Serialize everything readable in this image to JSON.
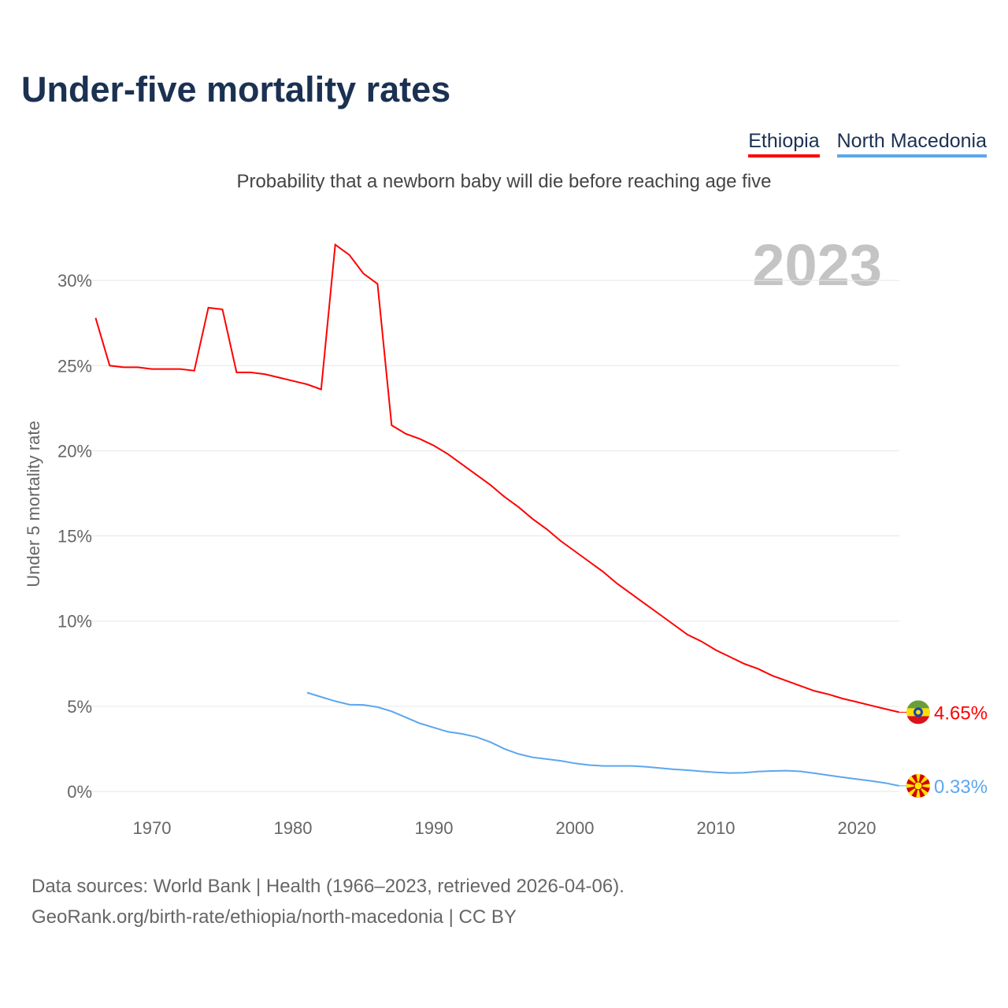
{
  "title": "Under-five mortality rates",
  "subtitle": "Probability that a newborn baby will die before reaching age five",
  "footer": {
    "line1": "Data sources: World Bank | Health (1966–2023, retrieved 2026-04-06).",
    "line2": "GeoRank.org/birth-rate/ethiopia/north-macedonia | CC BY"
  },
  "chart_data": {
    "type": "line",
    "title": "Under-five mortality rates",
    "ylabel": "Under 5 mortality rate",
    "xlabel": "",
    "year_label": "2023",
    "ylim": [
      0,
      32
    ],
    "xlim": [
      1966,
      2023
    ],
    "yticks": [
      0,
      5,
      10,
      15,
      20,
      25,
      30
    ],
    "ytick_labels": [
      "0%",
      "5%",
      "10%",
      "15%",
      "20%",
      "25%",
      "30%"
    ],
    "xticks": [
      1970,
      1980,
      1990,
      2000,
      2010,
      2020
    ],
    "xtick_labels": [
      "1970",
      "1980",
      "1990",
      "2000",
      "2010",
      "2020"
    ],
    "grid": true,
    "legend_position": "top-right",
    "series": [
      {
        "name": "Ethiopia",
        "color": "#ff0000",
        "start": 1966,
        "end_label": "4.65%",
        "flag": "ethiopia-flag",
        "values": [
          27.8,
          25.0,
          24.9,
          24.9,
          24.8,
          24.8,
          24.8,
          24.7,
          28.4,
          28.3,
          24.6,
          24.6,
          24.5,
          24.3,
          24.1,
          23.9,
          23.6,
          32.1,
          31.5,
          30.4,
          29.8,
          21.5,
          21.0,
          20.7,
          20.3,
          19.8,
          19.2,
          18.6,
          18.0,
          17.3,
          16.7,
          16.0,
          15.4,
          14.7,
          14.1,
          13.5,
          12.9,
          12.2,
          11.6,
          11.0,
          10.4,
          9.8,
          9.2,
          8.8,
          8.3,
          7.9,
          7.5,
          7.2,
          6.8,
          6.5,
          6.2,
          5.9,
          5.7,
          5.45,
          5.25,
          5.05,
          4.85,
          4.65
        ]
      },
      {
        "name": "North Macedonia",
        "color": "#5ba7ee",
        "start": 1981,
        "end_label": "0.33%",
        "flag": "north-macedonia-flag",
        "values": [
          5.8,
          5.55,
          5.3,
          5.1,
          5.08,
          4.95,
          4.7,
          4.35,
          4.0,
          3.75,
          3.5,
          3.38,
          3.2,
          2.9,
          2.5,
          2.2,
          2.0,
          1.9,
          1.8,
          1.65,
          1.55,
          1.5,
          1.5,
          1.5,
          1.45,
          1.38,
          1.3,
          1.25,
          1.18,
          1.12,
          1.08,
          1.1,
          1.17,
          1.2,
          1.22,
          1.18,
          1.07,
          0.95,
          0.83,
          0.72,
          0.62,
          0.5,
          0.33
        ]
      }
    ]
  }
}
